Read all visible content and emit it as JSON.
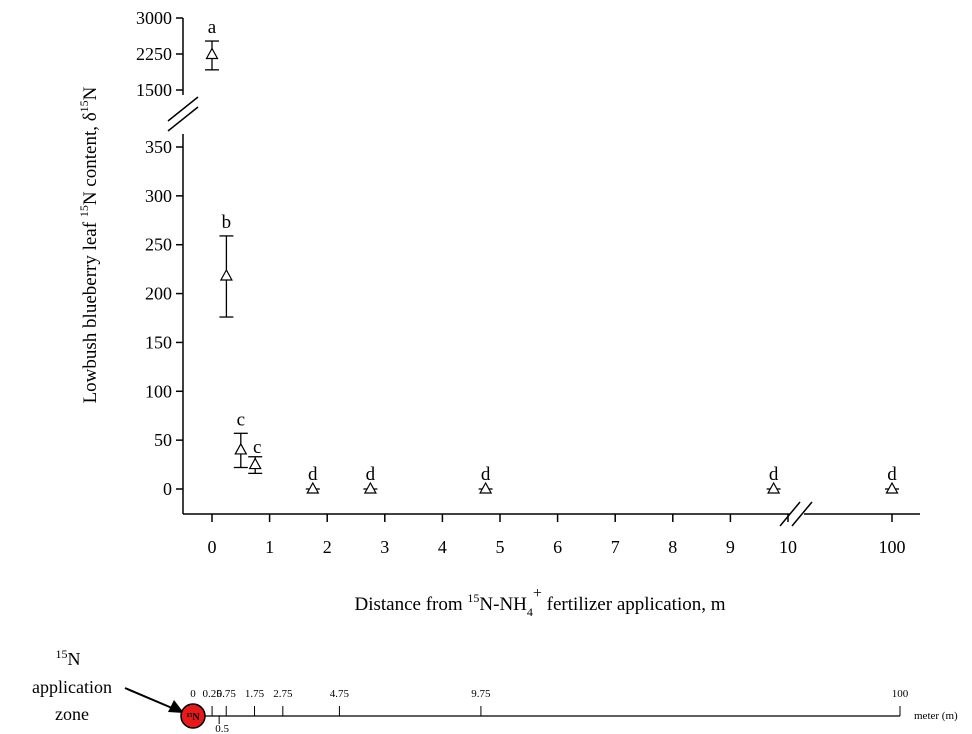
{
  "chart_data": {
    "type": "scatter",
    "ylabel_parts": {
      "pre": "Lowbush blueberry leaf ",
      "sup1": "15",
      "mid": "N content, δ",
      "sup2": "15",
      "post": "N"
    },
    "xlabel_parts": {
      "pre": "Distance from ",
      "sup": "15",
      "mid": "N-NH",
      "sub": "4",
      "sup2": "+",
      "post": " fertilizer application, m"
    },
    "x_ticks": [
      "0",
      "1",
      "2",
      "3",
      "4",
      "5",
      "6",
      "7",
      "8",
      "9",
      "10",
      "100"
    ],
    "y_ticks_upper": [
      "3000",
      "2250",
      "1500"
    ],
    "y_ticks_lower": [
      "350",
      "300",
      "250",
      "200",
      "150",
      "100",
      "50",
      "0"
    ],
    "ylim_upper": [
      1500,
      3000
    ],
    "ylim_lower": [
      -25,
      375
    ],
    "points": [
      {
        "x": 0,
        "y": 2240,
        "err_low": 1920,
        "err_high": 2520,
        "label": "a"
      },
      {
        "x": 0.25,
        "y": 218,
        "err_low": 176,
        "err_high": 259,
        "label": "b"
      },
      {
        "x": 0.5,
        "y": 40,
        "err_low": 22,
        "err_high": 57,
        "label": "c"
      },
      {
        "x": 0.75,
        "y": 25,
        "err_low": 16,
        "err_high": 33,
        "label": "c"
      },
      {
        "x": 1.75,
        "y": 0,
        "err_low": -1,
        "err_high": 1,
        "label": "d"
      },
      {
        "x": 2.75,
        "y": 0,
        "err_low": -1,
        "err_high": 1,
        "label": "d"
      },
      {
        "x": 4.75,
        "y": 0,
        "err_low": -1,
        "err_high": 1,
        "label": "d"
      },
      {
        "x": 9.75,
        "y": 0,
        "err_low": -1,
        "err_high": 1,
        "label": "d"
      },
      {
        "x": 100,
        "y": 0,
        "err_low": -1,
        "err_high": 1,
        "label": "d"
      }
    ]
  },
  "schematic": {
    "zone_label_parts": {
      "sup": "15",
      "sym": "N",
      "line2": "application",
      "line3": "zone"
    },
    "circle_label_parts": {
      "sup": "15",
      "sym": "N"
    },
    "circle_color": "#e31b1b",
    "unit_label": "meter (m)",
    "ticks": [
      {
        "value": 0,
        "label": "0",
        "below": false
      },
      {
        "value": 0.25,
        "label": "0.25",
        "below": false
      },
      {
        "value": 0.5,
        "label": "0.5",
        "below": true
      },
      {
        "value": 0.75,
        "label": "0.75",
        "below": false
      },
      {
        "value": 1.75,
        "label": "1.75",
        "below": false
      },
      {
        "value": 2.75,
        "label": "2.75",
        "below": false
      },
      {
        "value": 4.75,
        "label": "4.75",
        "below": false
      },
      {
        "value": 9.75,
        "label": "9.75",
        "below": false
      },
      {
        "value": 100,
        "label": "100",
        "below": false
      }
    ]
  }
}
